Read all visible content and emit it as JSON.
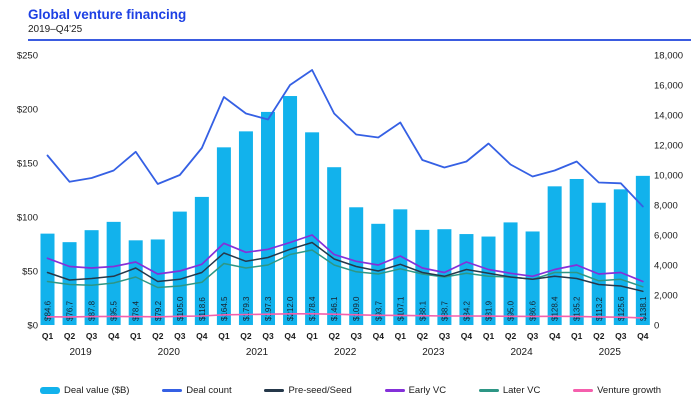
{
  "header": {
    "title": "Global venture financing",
    "subtitle": "2019–Q4'25"
  },
  "chart_data": {
    "type": "bar",
    "combo": "bar+line",
    "title": "Global venture financing",
    "subtitle": "2019–Q4'25",
    "grid": "off",
    "legend_position": "bottom",
    "quarters": [
      "Q1",
      "Q2",
      "Q3",
      "Q4",
      "Q1",
      "Q2",
      "Q3",
      "Q4",
      "Q1",
      "Q2",
      "Q3",
      "Q4",
      "Q1",
      "Q2",
      "Q3",
      "Q4",
      "Q1",
      "Q2",
      "Q3",
      "Q4",
      "Q1",
      "Q2",
      "Q3",
      "Q4",
      "Q1",
      "Q2",
      "Q3",
      "Q4"
    ],
    "years": [
      "2019",
      "2020",
      "2021",
      "2022",
      "2023",
      "2024",
      "2025"
    ],
    "left_axis": {
      "labels": [
        "$0",
        "$50",
        "$100",
        "$150",
        "$200",
        "$250"
      ],
      "values": [
        0,
        50,
        100,
        150,
        200,
        250
      ],
      "min": 0,
      "max": 250
    },
    "right_axis": {
      "labels": [
        "0",
        "2,000",
        "4,000",
        "6,000",
        "8,000",
        "10,000",
        "12,000",
        "14,000",
        "16,000",
        "18,000"
      ],
      "values": [
        0,
        2000,
        4000,
        6000,
        8000,
        10000,
        12000,
        14000,
        16000,
        18000
      ],
      "min": 0,
      "max": 18000
    },
    "bars": {
      "name": "Deal value ($B)",
      "color": "#12b2ec",
      "axis": "left",
      "values": [
        84.6,
        76.7,
        87.8,
        95.5,
        78.4,
        79.2,
        105.0,
        118.6,
        164.5,
        179.3,
        197.3,
        212.0,
        178.4,
        146.1,
        109.0,
        93.7,
        107.1,
        88.1,
        88.7,
        84.2,
        81.9,
        95.0,
        86.6,
        128.4,
        135.2,
        113.2,
        125.6,
        138.1
      ],
      "labels": [
        "$84.6",
        "$76.7",
        "$87.8",
        "$95.5",
        "$78.4",
        "$79.2",
        "$105.0",
        "$118.6",
        "$164.5",
        "$179.3",
        "$197.3",
        "$212.0",
        "$178.4",
        "$146.1",
        "$109.0",
        "$93.7",
        "$107.1",
        "$88.1",
        "$88.7",
        "$84.2",
        "$81.9",
        "$95.0",
        "$86.6",
        "$128.4",
        "$135.2",
        "$113.2",
        "$125.6",
        "$138.1"
      ]
    },
    "lines": [
      {
        "name": "Later VC",
        "color": "#2d9685",
        "axis": "right",
        "width": 1.5,
        "values": [
          2900,
          2700,
          2650,
          2800,
          3200,
          2500,
          2600,
          2850,
          4100,
          3800,
          4000,
          4700,
          5000,
          4000,
          3550,
          3400,
          3750,
          3400,
          3200,
          3450,
          3250,
          3200,
          3050,
          3500,
          3500,
          2950,
          3050,
          2550
        ]
      },
      {
        "name": "Pre-seed/Seed",
        "color": "#25384a",
        "axis": "right",
        "width": 1.5,
        "values": [
          3500,
          3000,
          3100,
          3250,
          3800,
          2900,
          3050,
          3500,
          4800,
          4250,
          4500,
          5050,
          5500,
          4400,
          3900,
          3600,
          4050,
          3500,
          3250,
          3700,
          3450,
          3200,
          3050,
          3250,
          3100,
          2700,
          2600,
          2250
        ]
      },
      {
        "name": "Early VC",
        "color": "#8430d9",
        "axis": "right",
        "width": 1.7,
        "values": [
          4450,
          3900,
          3800,
          3900,
          4200,
          3400,
          3600,
          4050,
          5450,
          4850,
          5050,
          5500,
          6000,
          4700,
          4250,
          4000,
          4600,
          3800,
          3500,
          4200,
          3700,
          3450,
          3250,
          3700,
          4000,
          3400,
          3500,
          2900
        ]
      },
      {
        "name": "Venture growth",
        "color": "#f55fad",
        "axis": "right",
        "width": 1.6,
        "values": [
          550,
          540,
          560,
          570,
          560,
          550,
          580,
          600,
          680,
          700,
          720,
          750,
          750,
          720,
          680,
          650,
          640,
          620,
          600,
          600,
          590,
          580,
          570,
          580,
          570,
          540,
          520,
          470
        ]
      },
      {
        "name": "Deal count",
        "color": "#3560e4",
        "axis": "right",
        "width": 1.8,
        "values": [
          11300,
          9550,
          9800,
          10300,
          11550,
          9400,
          10000,
          11800,
          15200,
          14100,
          13700,
          16000,
          17000,
          14100,
          12700,
          12500,
          13500,
          11000,
          10500,
          10900,
          12100,
          10700,
          9900,
          10300,
          10900,
          9500,
          9450,
          7900
        ]
      }
    ],
    "legend_order": [
      "Deal value ($B)",
      "Deal count",
      "Pre-seed/Seed",
      "Early VC",
      "Later VC",
      "Venture growth"
    ]
  }
}
